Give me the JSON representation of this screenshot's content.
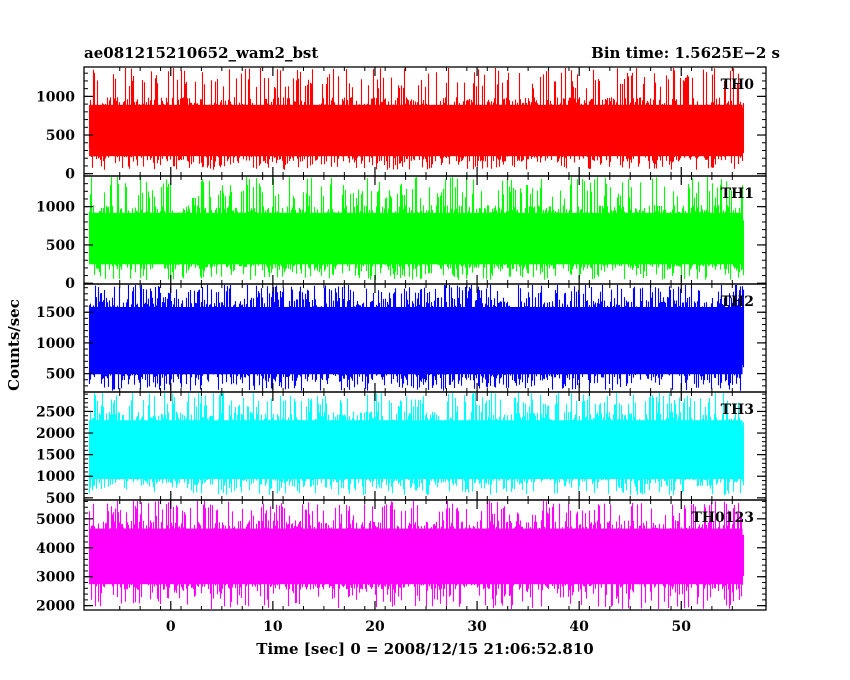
{
  "header": {
    "title": "ae081215210652_wam2_bst",
    "bin_time": "Bin time: 1.5625E−2 s"
  },
  "chart_data": {
    "type": "line",
    "xlabel": "Time [sec] 0 = 2008/12/15 21:06:52.810",
    "ylabel": "Counts/sec",
    "xlim": [
      -8.5,
      58.3
    ],
    "x_data_range": [
      -8,
      56
    ],
    "x_ticks": [
      0,
      10,
      20,
      30,
      40,
      50
    ],
    "panels": [
      {
        "name": "TH0",
        "color": "#ff0000",
        "ylim": [
          -30,
          1380
        ],
        "ticks": [
          0,
          500,
          1000
        ],
        "band": [
          160,
          990
        ],
        "peaks": [
          1100,
          1380
        ],
        "dips": [
          50,
          160
        ]
      },
      {
        "name": "TH1",
        "color": "#00ff00",
        "ylim": [
          -10,
          1400
        ],
        "ticks": [
          0,
          500,
          1000
        ],
        "band": [
          180,
          1020
        ],
        "peaks": [
          1100,
          1400
        ],
        "dips": [
          40,
          180
        ]
      },
      {
        "name": "TH2",
        "color": "#0000ff",
        "ylim": [
          200,
          1960
        ],
        "ticks": [
          500,
          1000,
          1500
        ],
        "band": [
          380,
          1750
        ],
        "peaks": [
          1800,
          1960
        ],
        "dips": [
          220,
          380
        ]
      },
      {
        "name": "TH3",
        "color": "#00ffff",
        "ylim": [
          450,
          2950
        ],
        "ticks": [
          500,
          1000,
          1500,
          2000,
          2500
        ],
        "band": [
          800,
          2500
        ],
        "peaks": [
          2600,
          2950
        ],
        "dips": [
          560,
          800
        ]
      },
      {
        "name": "TH0123",
        "color": "#ff00ff",
        "ylim": [
          1850,
          5650
        ],
        "ticks": [
          2000,
          3000,
          4000,
          5000
        ],
        "band": [
          2550,
          4950
        ],
        "peaks": [
          5100,
          5650
        ],
        "dips": [
          1880,
          2550
        ]
      }
    ]
  }
}
